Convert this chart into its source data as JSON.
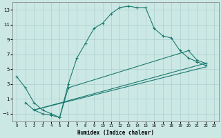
{
  "xlabel": "Humidex (Indice chaleur)",
  "background_color": "#cce8e5",
  "grid_color": "#aacfcb",
  "line_color": "#1a7a6e",
  "xlim": [
    -0.5,
    23.5
  ],
  "ylim": [
    -2.0,
    14.0
  ],
  "xticks": [
    0,
    1,
    2,
    3,
    4,
    5,
    6,
    7,
    8,
    9,
    10,
    11,
    12,
    13,
    14,
    15,
    16,
    17,
    18,
    19,
    20,
    21,
    22,
    23
  ],
  "yticks": [
    -1,
    1,
    3,
    5,
    7,
    9,
    11,
    13
  ],
  "series1_x": [
    0,
    1,
    2,
    3,
    4,
    5,
    6,
    7,
    8,
    9,
    10,
    11,
    12,
    13,
    14,
    15,
    16,
    17,
    18,
    19,
    20,
    21,
    22
  ],
  "series1_y": [
    4,
    2.5,
    0.5,
    -0.5,
    -1,
    -1.5,
    3,
    6.5,
    8.5,
    10.5,
    11.2,
    12.5,
    13.3,
    13.5,
    13.3,
    13.3,
    10.5,
    9.5,
    9.2,
    7.5,
    6.5,
    6.0,
    5.5
  ],
  "series2_x": [
    1,
    2,
    3,
    4,
    5,
    6,
    20,
    21,
    22
  ],
  "series2_y": [
    0.5,
    -0.5,
    -1.0,
    -1.2,
    -1.5,
    2.5,
    7.5,
    6.2,
    5.8
  ],
  "series3_x": [
    2,
    22
  ],
  "series3_y": [
    -0.5,
    5.8
  ],
  "series4_x": [
    2,
    22
  ],
  "series4_y": [
    -0.5,
    5.3
  ]
}
